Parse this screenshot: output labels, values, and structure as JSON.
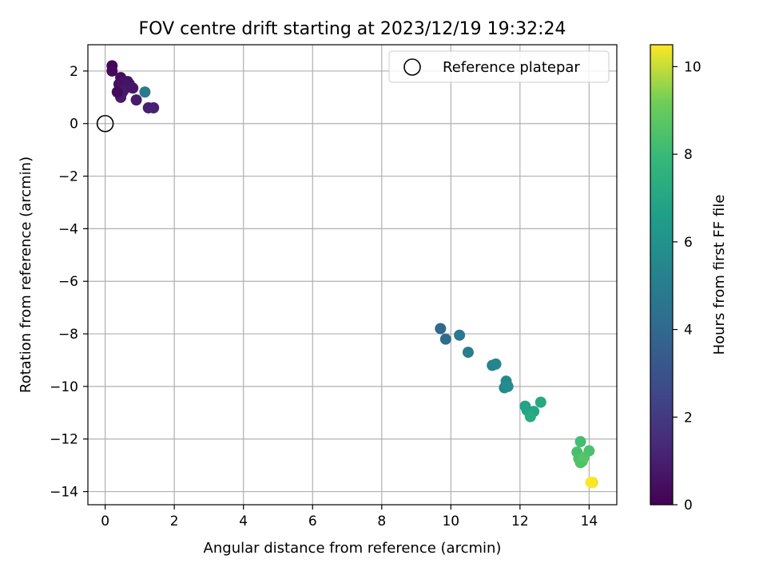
{
  "chart_data": {
    "type": "scatter",
    "title": "FOV centre drift starting at 2023/12/19 19:32:24",
    "xlabel": "Angular distance from reference (arcmin)",
    "ylabel": "Rotation from reference (arcmin)",
    "xlim": [
      -0.5,
      14.8
    ],
    "ylim": [
      -14.5,
      3.0
    ],
    "xticks": [
      0,
      2,
      4,
      6,
      8,
      10,
      12,
      14
    ],
    "yticks": [
      -14,
      -12,
      -10,
      -8,
      -6,
      -4,
      -2,
      0,
      2
    ],
    "grid": true,
    "legend": {
      "position": "top-right",
      "entries": [
        "Reference platepar"
      ]
    },
    "reference_point": {
      "x": 0.0,
      "y": 0.0
    },
    "colorbar": {
      "label": "Hours from first FF file",
      "colormap": "viridis",
      "range": [
        0,
        10.5
      ],
      "ticks": [
        0,
        2,
        4,
        6,
        8,
        10
      ]
    },
    "points": [
      {
        "x": 0.2,
        "y": 2.2,
        "h": 0.2
      },
      {
        "x": 0.2,
        "y": 2.0,
        "h": 0.3
      },
      {
        "x": 0.45,
        "y": 1.75,
        "h": 0.4
      },
      {
        "x": 0.4,
        "y": 1.5,
        "h": 0.5
      },
      {
        "x": 0.5,
        "y": 1.55,
        "h": 0.55
      },
      {
        "x": 0.65,
        "y": 1.6,
        "h": 0.6
      },
      {
        "x": 0.7,
        "y": 1.5,
        "h": 0.65
      },
      {
        "x": 0.55,
        "y": 1.3,
        "h": 0.7
      },
      {
        "x": 0.8,
        "y": 1.35,
        "h": 0.75
      },
      {
        "x": 0.5,
        "y": 1.2,
        "h": 0.8
      },
      {
        "x": 0.45,
        "y": 1.0,
        "h": 0.85
      },
      {
        "x": 0.9,
        "y": 0.9,
        "h": 0.9
      },
      {
        "x": 1.25,
        "y": 0.6,
        "h": 1.0
      },
      {
        "x": 1.4,
        "y": 0.6,
        "h": 1.1
      },
      {
        "x": 0.35,
        "y": 1.2,
        "h": 0.3
      },
      {
        "x": 1.15,
        "y": 1.2,
        "h": 4.8
      },
      {
        "x": 9.7,
        "y": -7.8,
        "h": 4.0
      },
      {
        "x": 9.85,
        "y": -8.2,
        "h": 4.2
      },
      {
        "x": 10.25,
        "y": -8.05,
        "h": 4.8
      },
      {
        "x": 10.5,
        "y": -8.7,
        "h": 5.0
      },
      {
        "x": 11.2,
        "y": -9.2,
        "h": 5.3
      },
      {
        "x": 11.3,
        "y": -9.15,
        "h": 5.4
      },
      {
        "x": 11.6,
        "y": -9.8,
        "h": 5.6
      },
      {
        "x": 11.55,
        "y": -10.05,
        "h": 5.5
      },
      {
        "x": 11.65,
        "y": -10.0,
        "h": 5.7
      },
      {
        "x": 12.15,
        "y": -10.75,
        "h": 6.8
      },
      {
        "x": 12.2,
        "y": -10.9,
        "h": 6.9
      },
      {
        "x": 12.3,
        "y": -11.1,
        "h": 7.0
      },
      {
        "x": 12.4,
        "y": -10.95,
        "h": 7.0
      },
      {
        "x": 12.6,
        "y": -10.6,
        "h": 7.1
      },
      {
        "x": 12.3,
        "y": -11.15,
        "h": 7.2
      },
      {
        "x": 13.75,
        "y": -12.1,
        "h": 8.2
      },
      {
        "x": 13.65,
        "y": -12.5,
        "h": 8.3
      },
      {
        "x": 13.7,
        "y": -12.75,
        "h": 8.4
      },
      {
        "x": 13.8,
        "y": -12.85,
        "h": 8.5
      },
      {
        "x": 13.75,
        "y": -12.9,
        "h": 8.5
      },
      {
        "x": 13.85,
        "y": -12.7,
        "h": 8.6
      },
      {
        "x": 14.0,
        "y": -12.45,
        "h": 8.4
      },
      {
        "x": 14.1,
        "y": -13.65,
        "h": 10.3
      },
      {
        "x": 14.05,
        "y": -13.65,
        "h": 10.5
      }
    ]
  }
}
